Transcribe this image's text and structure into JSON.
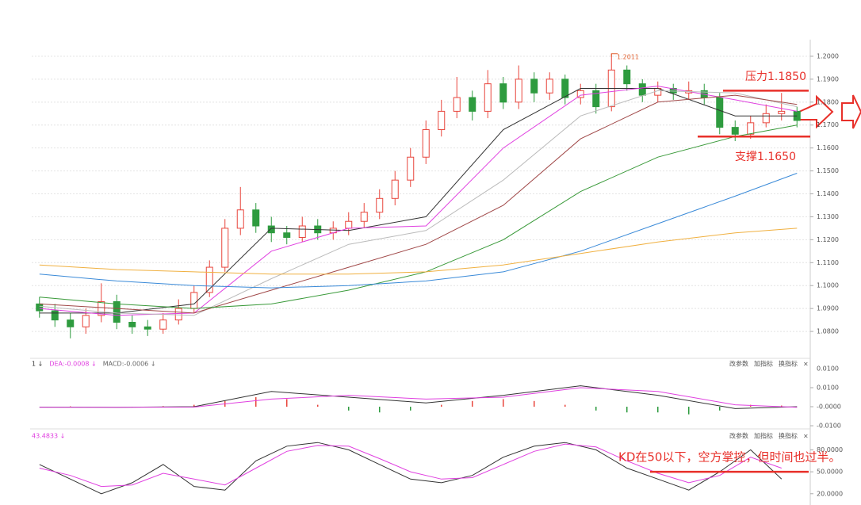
{
  "chart_data": [
    {
      "type": "candlestick",
      "up_color": "#e8453c",
      "down_color": "#2e9b3f",
      "open": [
        1.092,
        1.089,
        1.085,
        1.082,
        1.087,
        1.093,
        1.084,
        1.082,
        1.081,
        1.085,
        1.09,
        1.097,
        1.108,
        1.125,
        1.133,
        1.126,
        1.123,
        1.121,
        1.126,
        1.123,
        1.125,
        1.128,
        1.132,
        1.138,
        1.146,
        1.156,
        1.168,
        1.176,
        1.182,
        1.176,
        1.188,
        1.18,
        1.19,
        1.184,
        1.19,
        1.182,
        1.185,
        1.178,
        1.194,
        1.188,
        1.183,
        1.186,
        1.184,
        1.185,
        1.182,
        1.169,
        1.166,
        1.171,
        1.175,
        1.176
      ],
      "high": [
        1.095,
        1.092,
        1.088,
        1.09,
        1.101,
        1.096,
        1.087,
        1.085,
        1.088,
        1.094,
        1.1,
        1.111,
        1.129,
        1.143,
        1.136,
        1.13,
        1.126,
        1.13,
        1.129,
        1.128,
        1.132,
        1.136,
        1.142,
        1.15,
        1.16,
        1.172,
        1.181,
        1.191,
        1.185,
        1.194,
        1.191,
        1.196,
        1.193,
        1.193,
        1.192,
        1.188,
        1.188,
        1.2011,
        1.196,
        1.19,
        1.189,
        1.188,
        1.189,
        1.188,
        1.184,
        1.172,
        1.174,
        1.179,
        1.184,
        1.178
      ],
      "low": [
        1.086,
        1.082,
        1.077,
        1.079,
        1.084,
        1.081,
        1.079,
        1.078,
        1.079,
        1.083,
        1.088,
        1.095,
        1.106,
        1.122,
        1.123,
        1.119,
        1.118,
        1.119,
        1.12,
        1.12,
        1.122,
        1.125,
        1.129,
        1.135,
        1.143,
        1.153,
        1.165,
        1.173,
        1.172,
        1.173,
        1.177,
        1.177,
        1.18,
        1.181,
        1.179,
        1.179,
        1.175,
        1.176,
        1.185,
        1.18,
        1.18,
        1.181,
        1.181,
        1.179,
        1.166,
        1.163,
        1.164,
        1.169,
        1.172,
        1.169
      ],
      "close": [
        1.089,
        1.085,
        1.082,
        1.087,
        1.093,
        1.084,
        1.082,
        1.081,
        1.085,
        1.09,
        1.097,
        1.108,
        1.125,
        1.133,
        1.126,
        1.123,
        1.121,
        1.126,
        1.123,
        1.125,
        1.128,
        1.132,
        1.138,
        1.146,
        1.156,
        1.168,
        1.176,
        1.182,
        1.176,
        1.188,
        1.18,
        1.19,
        1.184,
        1.19,
        1.182,
        1.185,
        1.178,
        1.194,
        1.188,
        1.183,
        1.186,
        1.184,
        1.185,
        1.182,
        1.169,
        1.166,
        1.171,
        1.175,
        1.176,
        1.172
      ],
      "series": [
        {
          "type": "line",
          "color": "#333333",
          "x": [
            0,
            5,
            10,
            15,
            20,
            25,
            30,
            35,
            40,
            45,
            49
          ],
          "values": [
            1.088,
            1.088,
            1.092,
            1.125,
            1.124,
            1.13,
            1.168,
            1.186,
            1.186,
            1.174,
            1.174
          ]
        },
        {
          "type": "line",
          "color": "#e040e0",
          "x": [
            0,
            5,
            10,
            15,
            20,
            25,
            30,
            35,
            40,
            45,
            49
          ],
          "values": [
            1.09,
            1.087,
            1.088,
            1.115,
            1.125,
            1.126,
            1.16,
            1.183,
            1.187,
            1.181,
            1.176
          ]
        },
        {
          "type": "line",
          "color": "#bbbbbb",
          "x": [
            0,
            5,
            10,
            15,
            20,
            25,
            30,
            35,
            40,
            45,
            49
          ],
          "values": [
            1.091,
            1.088,
            1.087,
            1.103,
            1.118,
            1.124,
            1.146,
            1.174,
            1.185,
            1.184,
            1.178
          ]
        },
        {
          "type": "line",
          "color": "#a04848",
          "x": [
            0,
            5,
            10,
            15,
            20,
            25,
            30,
            35,
            40,
            45,
            49
          ],
          "values": [
            1.092,
            1.09,
            1.088,
            1.098,
            1.108,
            1.118,
            1.135,
            1.164,
            1.18,
            1.183,
            1.179
          ]
        },
        {
          "type": "line",
          "color": "#3a9a3a",
          "x": [
            0,
            5,
            10,
            15,
            20,
            25,
            30,
            35,
            40,
            45,
            49
          ],
          "values": [
            1.095,
            1.092,
            1.09,
            1.092,
            1.098,
            1.106,
            1.12,
            1.141,
            1.156,
            1.165,
            1.17
          ]
        },
        {
          "type": "line",
          "color": "#3a8ad8",
          "x": [
            0,
            5,
            10,
            15,
            20,
            25,
            30,
            35,
            40,
            45,
            49
          ],
          "values": [
            1.105,
            1.102,
            1.1,
            1.099,
            1.1,
            1.102,
            1.106,
            1.115,
            1.127,
            1.139,
            1.149
          ]
        },
        {
          "type": "line",
          "color": "#f0b040",
          "x": [
            0,
            5,
            10,
            15,
            20,
            25,
            30,
            35,
            40,
            45,
            49
          ],
          "values": [
            1.109,
            1.107,
            1.106,
            1.105,
            1.105,
            1.106,
            1.109,
            1.114,
            1.119,
            1.123,
            1.125
          ]
        }
      ],
      "ylim": [
        1.07,
        1.205
      ],
      "yticks": [
        {
          "value": 1.08,
          "label": "1.0800"
        },
        {
          "value": 1.09,
          "label": "1.0900"
        },
        {
          "value": 1.1,
          "label": "1.1000"
        },
        {
          "value": 1.11,
          "label": "1.1100"
        },
        {
          "value": 1.12,
          "label": "1.1200"
        },
        {
          "value": 1.13,
          "label": "1.1300"
        },
        {
          "value": 1.14,
          "label": "1.1400"
        },
        {
          "value": 1.15,
          "label": "1.1500"
        },
        {
          "value": 1.16,
          "label": "1.1600"
        },
        {
          "value": 1.17,
          "label": "1.1700"
        },
        {
          "value": 1.18,
          "label": "1.1800"
        },
        {
          "value": 1.19,
          "label": "1.1900"
        },
        {
          "value": 1.2,
          "label": "1.2000"
        }
      ],
      "grid": true,
      "annotations": [
        {
          "text": "压力1.1850",
          "value": 1.185,
          "color": "#e8302a"
        },
        {
          "text": "支撑1.1650",
          "value": 1.165,
          "color": "#e8302a"
        },
        {
          "text": "1.2011",
          "value": 1.2011,
          "x": 37,
          "color": "#e06030"
        }
      ]
    },
    {
      "type": "line",
      "header": [
        {
          "text": "1 ↓",
          "color": "#333333"
        },
        {
          "text": "DEA:-0.0008 ↓",
          "color": "#e040e0"
        },
        {
          "text": "MACD:-0.0006 ↓",
          "color": "#666666"
        }
      ],
      "top_label": "0.0100",
      "series": [
        {
          "type": "bar",
          "color": "#e8453c",
          "negative_color": "#2e9b3f",
          "x": [
            0,
            2,
            4,
            6,
            8,
            10,
            12,
            14,
            16,
            18,
            20,
            22,
            24,
            26,
            28,
            30,
            32,
            34,
            36,
            38,
            40,
            42,
            44,
            46,
            48
          ],
          "values": [
            0.0,
            0.0002,
            0.0,
            -0.0004,
            0.0003,
            0.001,
            0.003,
            0.005,
            0.004,
            0.001,
            -0.002,
            -0.003,
            -0.002,
            0.001,
            0.003,
            0.004,
            0.003,
            0.001,
            -0.002,
            -0.003,
            -0.003,
            -0.004,
            -0.002,
            0.001,
            0.0006
          ]
        },
        {
          "type": "line",
          "color": "#333333",
          "x": [
            0,
            5,
            10,
            15,
            20,
            25,
            30,
            35,
            40,
            45,
            49
          ],
          "values": [
            -0.0002,
            -0.0003,
            0.0,
            0.008,
            0.005,
            0.002,
            0.006,
            0.011,
            0.006,
            -0.001,
            0.0
          ]
        },
        {
          "type": "line",
          "color": "#e040e0",
          "x": [
            0,
            5,
            10,
            15,
            20,
            25,
            30,
            35,
            40,
            45,
            49
          ],
          "values": [
            -0.0003,
            -0.0003,
            -0.0002,
            0.004,
            0.006,
            0.004,
            0.005,
            0.01,
            0.008,
            0.001,
            -0.0003
          ]
        }
      ],
      "ylim": [
        -0.0104,
        0.0229
      ],
      "yticks": [
        {
          "value": 0.01,
          "label": "0.0100"
        },
        {
          "value": 0,
          "label": "-0.0000"
        },
        {
          "value": -0.01,
          "label": "-0.0100"
        }
      ]
    },
    {
      "type": "line",
      "header": [
        {
          "text": "43.4833 ↓",
          "color": "#e040e0"
        }
      ],
      "series": [
        {
          "type": "line",
          "color": "#333333",
          "x": [
            0,
            2,
            4,
            6,
            8,
            10,
            12,
            14,
            16,
            18,
            20,
            22,
            24,
            26,
            28,
            30,
            32,
            34,
            36,
            38,
            40,
            42,
            44,
            46,
            48
          ],
          "values": [
            60,
            40,
            20,
            35,
            60,
            30,
            25,
            65,
            85,
            90,
            80,
            60,
            40,
            35,
            45,
            70,
            85,
            90,
            80,
            55,
            40,
            25,
            50,
            80,
            40
          ]
        },
        {
          "type": "line",
          "color": "#e040e0",
          "x": [
            0,
            2,
            4,
            6,
            8,
            10,
            12,
            14,
            16,
            18,
            20,
            22,
            24,
            26,
            28,
            30,
            32,
            34,
            36,
            38,
            40,
            42,
            44,
            46,
            48
          ],
          "values": [
            55,
            45,
            30,
            32,
            48,
            40,
            32,
            55,
            78,
            86,
            85,
            68,
            50,
            40,
            42,
            60,
            78,
            88,
            84,
            65,
            48,
            35,
            45,
            70,
            55
          ]
        }
      ],
      "ylim": [
        10,
        100
      ],
      "yticks": [
        {
          "value": 20,
          "label": "20.0000"
        },
        {
          "value": 50,
          "label": "50.0000"
        },
        {
          "value": 80,
          "label": "80.0000"
        }
      ],
      "annotations": [
        {
          "text": "KD在50以下，空方掌控，但时间也过半。",
          "value": 50,
          "color": "#e8302a"
        }
      ]
    }
  ],
  "toolbar": [
    "改参数",
    "加指标",
    "换指标",
    "×"
  ]
}
